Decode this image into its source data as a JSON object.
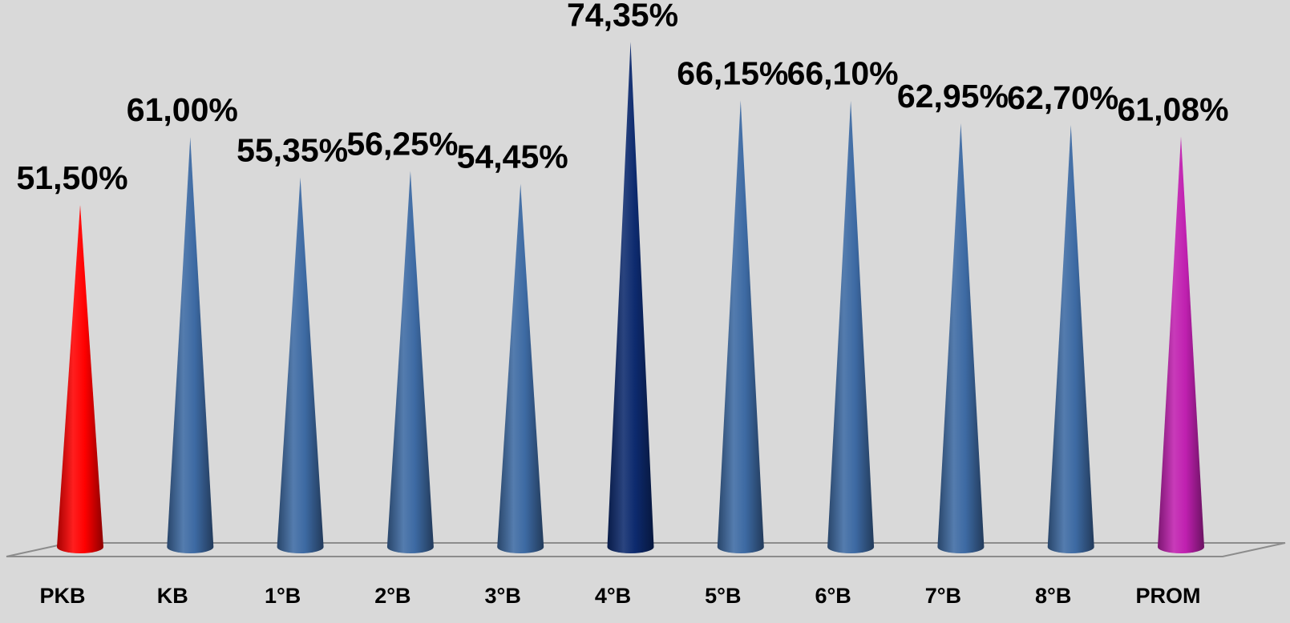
{
  "chart_data": {
    "type": "bar",
    "bar_shape": "cone",
    "categories": [
      "PKB",
      "KB",
      "1°B",
      "2°B",
      "3°B",
      "4°B",
      "5°B",
      "6°B",
      "7°B",
      "8°B",
      "PROM"
    ],
    "values": [
      51.5,
      61.0,
      55.35,
      56.25,
      54.45,
      74.35,
      66.15,
      66.1,
      62.95,
      62.7,
      61.08
    ],
    "data_labels": [
      "51,50%",
      "61,00%",
      "55,35%",
      "56,25%",
      "54,45%",
      "74,35%",
      "66,15%",
      "66,10%",
      "62,95%",
      "62,70%",
      "61,08%"
    ],
    "colors": [
      "#ff0000",
      "#3d6aa3",
      "#3d6aa3",
      "#3d6aa3",
      "#3d6aa3",
      "#0d2a6e",
      "#3d6aa3",
      "#3d6aa3",
      "#3d6aa3",
      "#3d6aa3",
      "#c020b0"
    ],
    "title": "",
    "xlabel": "",
    "ylabel": "",
    "grid": false,
    "legend": "none"
  }
}
